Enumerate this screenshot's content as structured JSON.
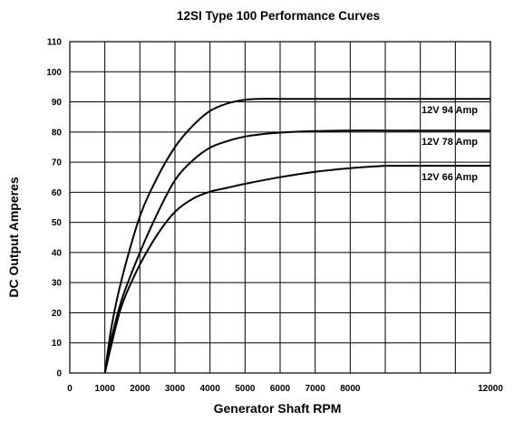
{
  "chart_data": {
    "type": "line",
    "title": "12SI Type 100 Performance Curves",
    "xlabel": "Generator Shaft RPM",
    "ylabel": "DC Output Amperes",
    "xlim": [
      0,
      12000
    ],
    "ylim": [
      0,
      110
    ],
    "x_ticks": [
      0,
      1000,
      2000,
      3000,
      4000,
      5000,
      6000,
      7000,
      8000,
      12000
    ],
    "x_tick_labels": [
      "0",
      "1000",
      "2000",
      "3000",
      "4000",
      "5000",
      "6000",
      "7000",
      "8000",
      "12000"
    ],
    "y_ticks": [
      0,
      10,
      20,
      30,
      40,
      50,
      60,
      70,
      80,
      90,
      100,
      110
    ],
    "grid": true,
    "series": [
      {
        "name": "12V 94 Amp",
        "x": [
          1000,
          1200,
          1500,
          2000,
          2500,
          3000,
          3500,
          4000,
          4500,
          5000,
          5500,
          6000,
          7000,
          8000,
          9000
        ],
        "y": [
          0,
          16,
          32,
          52,
          65,
          75,
          82,
          87,
          89.5,
          90.7,
          91,
          91,
          91,
          91,
          91
        ]
      },
      {
        "name": "12V 78 Amp",
        "x": [
          1000,
          1200,
          1500,
          2000,
          2500,
          3000,
          3500,
          4000,
          4500,
          5000,
          5500,
          6000,
          7000,
          8000,
          9000
        ],
        "y": [
          0,
          12,
          25,
          40,
          53,
          64,
          70.5,
          74.8,
          77,
          78.5,
          79.3,
          79.8,
          80.3,
          80.5,
          80.5
        ]
      },
      {
        "name": "12V 66 Amp",
        "x": [
          1000,
          1200,
          1500,
          2000,
          2500,
          3000,
          3500,
          4000,
          4500,
          5000,
          6000,
          7000,
          8000,
          9000
        ],
        "y": [
          0,
          10,
          23,
          36,
          46,
          53.5,
          57.8,
          60.2,
          61.5,
          62.8,
          65,
          66.8,
          68,
          68.8
        ]
      }
    ]
  }
}
